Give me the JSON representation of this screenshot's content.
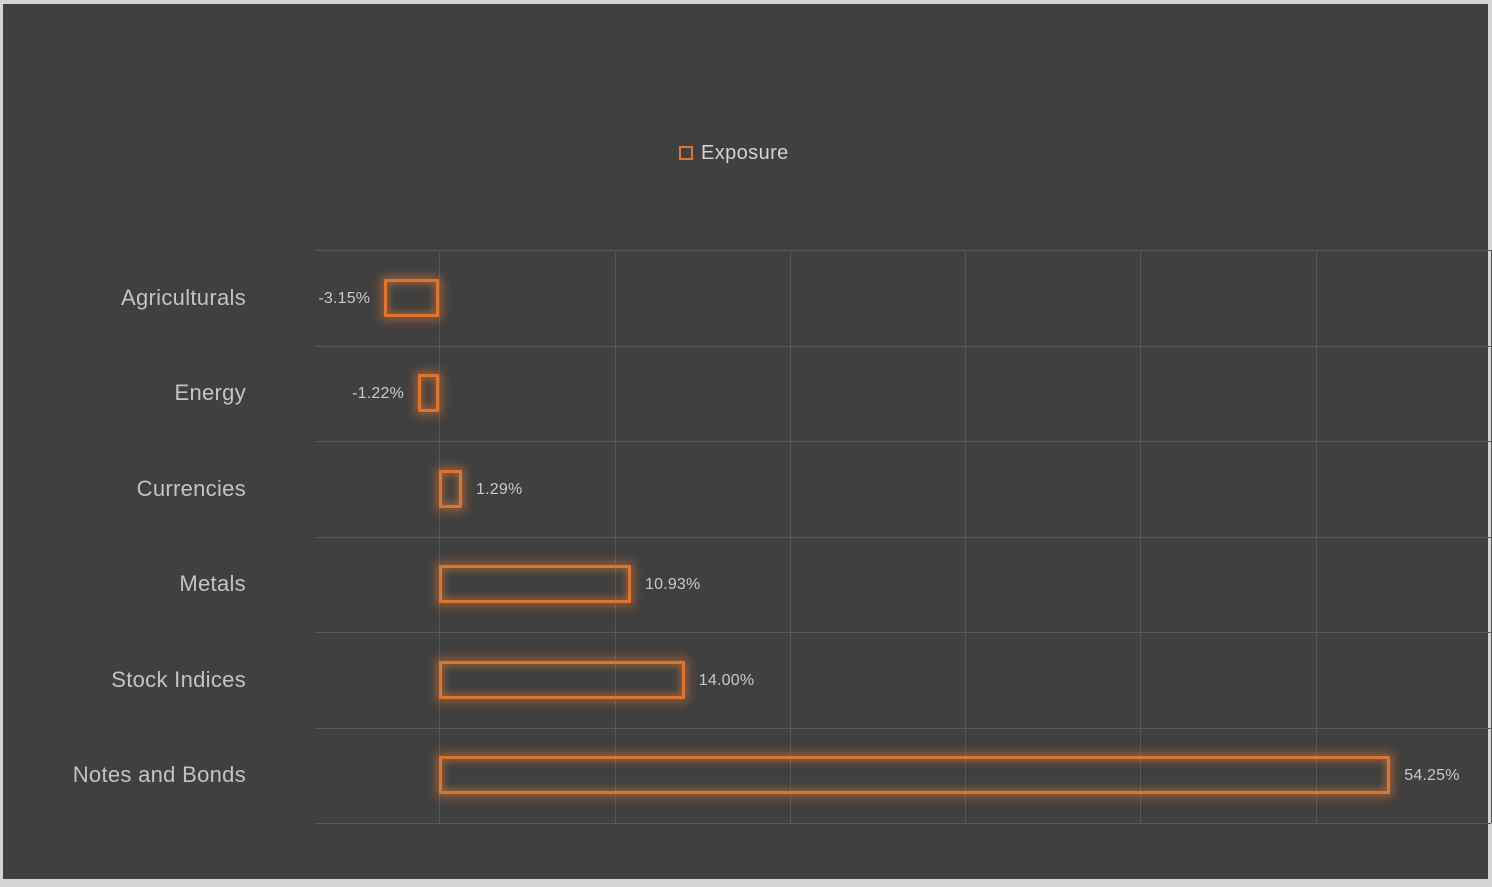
{
  "legend": {
    "label": "Exposure"
  },
  "colors": {
    "background": "#404040",
    "frame": "#d4d4d4",
    "gridline": "#575757",
    "bar_border": "#dd742f",
    "bar_glow": "rgba(237,125,49,0.5)",
    "category_label": "#c3c3c3",
    "value_label": "#c9c9c9",
    "legend_text": "#d2d2d2"
  },
  "chart_data": {
    "type": "bar",
    "orientation": "horizontal",
    "title": "",
    "series_name": "Exposure",
    "categories": [
      "Agriculturals",
      "Energy",
      "Currencies",
      "Metals",
      "Stock Indices",
      "Notes and Bonds"
    ],
    "values": [
      -3.15,
      -1.22,
      1.29,
      10.93,
      14.0,
      54.25
    ],
    "value_labels": [
      "-3.15%",
      "-1.22%",
      "1.29%",
      "10.93%",
      "14.00%",
      "54.25%"
    ],
    "xlabel": "",
    "ylabel": "",
    "xlim": [
      -7.1,
      60
    ],
    "gridlines_x": [
      0,
      10,
      20,
      30,
      40,
      50,
      60
    ],
    "grid": true,
    "bar_fill": "none",
    "legend_position": "top-center"
  }
}
